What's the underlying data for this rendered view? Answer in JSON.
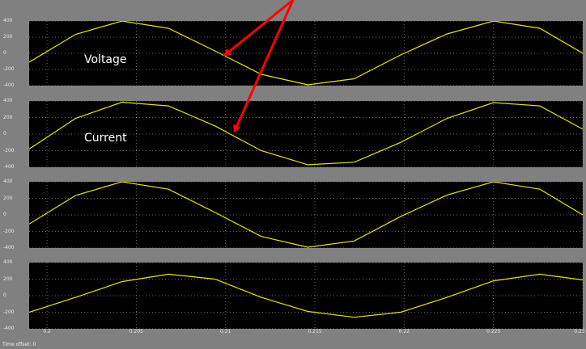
{
  "x_ticks": [
    "0.2",
    "0.205",
    "0.21",
    "0.215",
    "0.22",
    "0.225",
    "0.23"
  ],
  "y_ticks": [
    "400",
    "200",
    "0",
    "-200",
    "-400"
  ],
  "status_text": "Time offset:  0",
  "colors": {
    "trace": "#e6e600",
    "plot_bg": "#000000",
    "frame_bg": "#808080",
    "arrow": "#ff0000"
  },
  "panels": [
    {
      "label": "Voltage"
    },
    {
      "label": "Current"
    },
    {
      "label": ""
    },
    {
      "label": ""
    }
  ],
  "chart_data": [
    {
      "type": "line",
      "xlim": [
        0.199,
        0.23
      ],
      "ylim": [
        -400,
        400
      ],
      "grid": true,
      "series": [
        {
          "x": [
            0.199,
            0.2016,
            0.2042,
            0.2068,
            0.2094,
            0.212,
            0.2146,
            0.2172,
            0.2198,
            0.2224,
            0.225,
            0.2276,
            0.23
          ],
          "y": [
            -110,
            235,
            400,
            310,
            30,
            -260,
            -390,
            -315,
            -20,
            240,
            400,
            310,
            0
          ]
        }
      ]
    },
    {
      "type": "line",
      "xlim": [
        0.199,
        0.23
      ],
      "ylim": [
        -400,
        400
      ],
      "grid": true,
      "series": [
        {
          "x": [
            0.199,
            0.2016,
            0.2042,
            0.2068,
            0.2094,
            0.212,
            0.2146,
            0.2172,
            0.2198,
            0.2224,
            0.225,
            0.2276,
            0.23
          ],
          "y": [
            -180,
            190,
            385,
            340,
            100,
            -200,
            -370,
            -340,
            -100,
            190,
            380,
            340,
            60
          ]
        }
      ]
    },
    {
      "type": "line",
      "xlim": [
        0.199,
        0.23
      ],
      "ylim": [
        -400,
        400
      ],
      "grid": true,
      "series": [
        {
          "x": [
            0.199,
            0.2016,
            0.2042,
            0.2068,
            0.2094,
            0.212,
            0.2146,
            0.2172,
            0.2198,
            0.2224,
            0.225,
            0.2276,
            0.23
          ],
          "y": [
            -110,
            235,
            400,
            310,
            30,
            -260,
            -390,
            -315,
            -20,
            240,
            400,
            310,
            0
          ]
        }
      ]
    },
    {
      "type": "line",
      "xlim": [
        0.199,
        0.23
      ],
      "ylim": [
        -400,
        400
      ],
      "grid": true,
      "series": [
        {
          "x": [
            0.199,
            0.2016,
            0.2042,
            0.2068,
            0.2094,
            0.212,
            0.2146,
            0.2172,
            0.2198,
            0.2224,
            0.225,
            0.2276,
            0.23
          ],
          "y": [
            -200,
            -20,
            170,
            260,
            200,
            -20,
            -190,
            -260,
            -200,
            -20,
            180,
            260,
            190
          ]
        }
      ]
    }
  ]
}
